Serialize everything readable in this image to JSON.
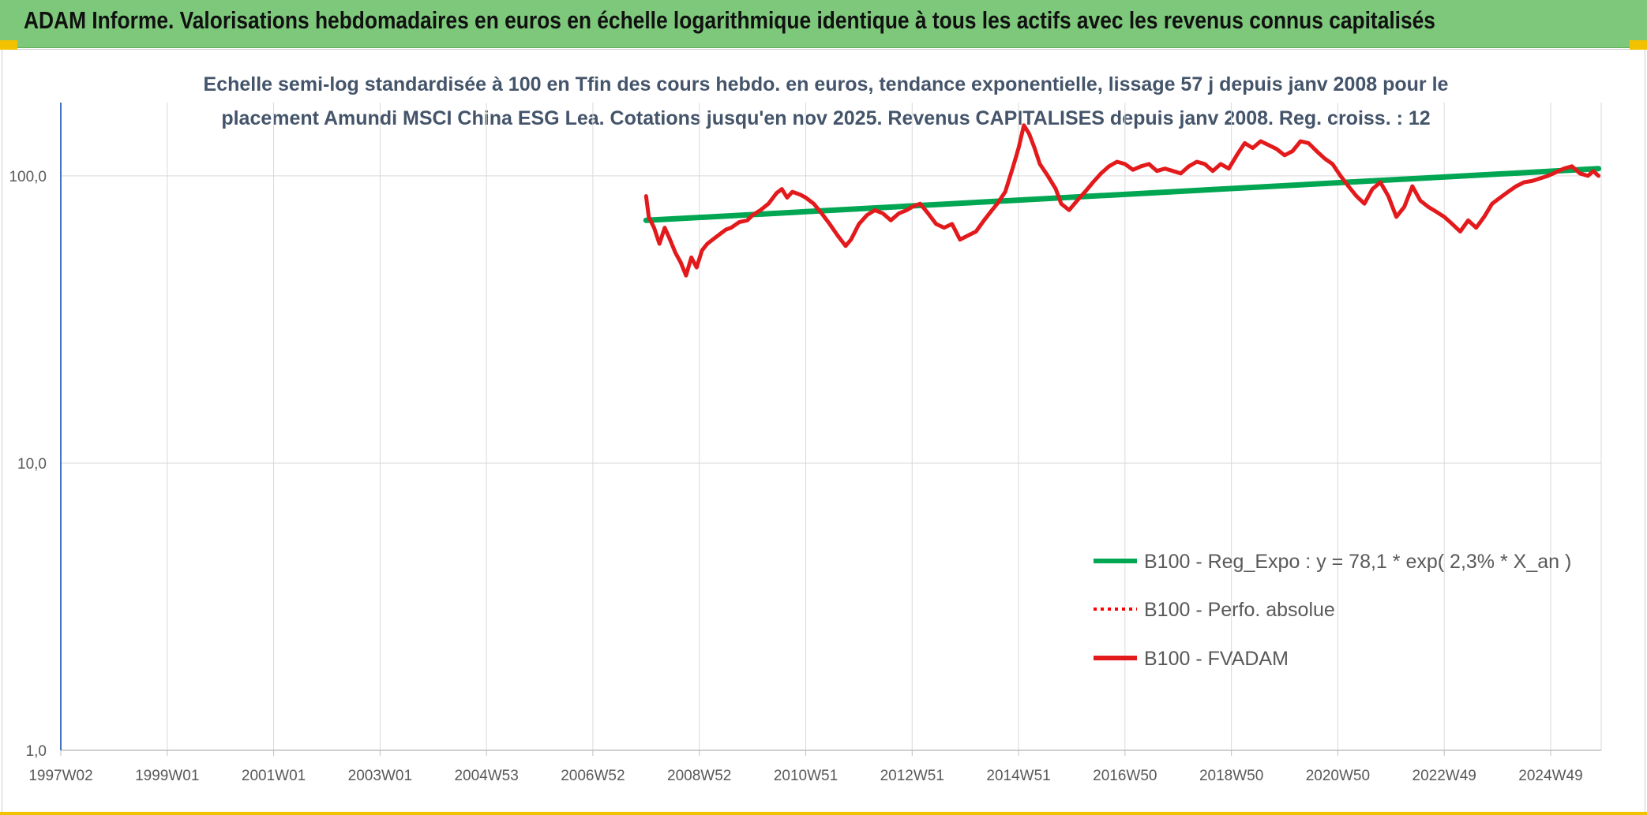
{
  "header": {
    "title": "ADAM Informe. Valorisations hebdomadaires en euros en échelle logarithmique identique à tous les actifs avec les revenus connus capitalisés"
  },
  "colors": {
    "banner": "#7dc87b",
    "accent_yellow": "#f2c200",
    "regression_line": "#00a651",
    "performance_line": "#ff0000",
    "fvadam_line": "#e31a1c",
    "y_axis": "#4472c4"
  },
  "chart_data": {
    "type": "line",
    "subtitle_line1": "Echelle semi-log standardisée à 100 en Tfin des cours hebdo. en euros, tendance exponentielle, lissage 57 j depuis janv 2008 pour le",
    "subtitle_line2": "placement Amundi MSCI China ESG Lea. Cotations jusqu'en nov 2025. Revenus CAPITALISES depuis janv 2008. Reg. croiss. : 12",
    "y_scale": "log",
    "ylim": [
      1,
      180
    ],
    "y_tick_labels": [
      "100,0",
      "10,0",
      "1,0"
    ],
    "y_tick_values": [
      100,
      10,
      1
    ],
    "xlim": [
      1997.0,
      2025.95
    ],
    "x_tick_labels": [
      "1997W02",
      "1999W01",
      "2001W01",
      "2003W01",
      "2004W53",
      "2006W52",
      "2008W52",
      "2010W51",
      "2012W51",
      "2014W51",
      "2016W50",
      "2018W50",
      "2020W50",
      "2022W49",
      "2024W49"
    ],
    "x_tick_values": [
      1997.0,
      1999.0,
      2001.0,
      2003.0,
      2005.0,
      2007.0,
      2009.0,
      2011.0,
      2013.0,
      2015.0,
      2017.0,
      2019.0,
      2021.0,
      2023.0,
      2025.0
    ],
    "grid": true,
    "legend_position": "bottom-right",
    "series": [
      {
        "name": "B100 - Reg_Expo : y = 78,1 * exp( 2,3% *  X_an )",
        "style": "solid",
        "x": [
          2008.0,
          2025.9
        ],
        "y": [
          70,
          106
        ]
      },
      {
        "name": "B100 - Perfo. absolue",
        "style": "dotted",
        "x": [],
        "y": []
      },
      {
        "name": "B100 - FVADAM",
        "style": "solid",
        "x": [
          2008.0,
          2008.05,
          2008.15,
          2008.25,
          2008.35,
          2008.45,
          2008.55,
          2008.65,
          2008.75,
          2008.85,
          2008.95,
          2009.05,
          2009.15,
          2009.25,
          2009.4,
          2009.5,
          2009.6,
          2009.75,
          2009.9,
          2010.0,
          2010.15,
          2010.3,
          2010.45,
          2010.55,
          2010.65,
          2010.75,
          2010.9,
          2011.0,
          2011.15,
          2011.3,
          2011.45,
          2011.6,
          2011.75,
          2011.85,
          2012.0,
          2012.15,
          2012.3,
          2012.45,
          2012.6,
          2012.75,
          2012.9,
          2013.0,
          2013.15,
          2013.3,
          2013.45,
          2013.6,
          2013.75,
          2013.9,
          2014.05,
          2014.2,
          2014.35,
          2014.5,
          2014.6,
          2014.75,
          2014.9,
          2015.0,
          2015.1,
          2015.2,
          2015.3,
          2015.4,
          2015.55,
          2015.7,
          2015.8,
          2015.95,
          2016.1,
          2016.25,
          2016.4,
          2016.55,
          2016.7,
          2016.85,
          2017.0,
          2017.15,
          2017.3,
          2017.45,
          2017.6,
          2017.75,
          2017.9,
          2018.05,
          2018.2,
          2018.35,
          2018.5,
          2018.65,
          2018.8,
          2018.95,
          2019.1,
          2019.25,
          2019.4,
          2019.55,
          2019.7,
          2019.85,
          2020.0,
          2020.15,
          2020.3,
          2020.45,
          2020.6,
          2020.75,
          2020.9,
          2021.05,
          2021.2,
          2021.35,
          2021.5,
          2021.65,
          2021.8,
          2021.95,
          2022.1,
          2022.25,
          2022.4,
          2022.55,
          2022.7,
          2022.85,
          2023.0,
          2023.15,
          2023.3,
          2023.45,
          2023.6,
          2023.75,
          2023.9,
          2024.05,
          2024.2,
          2024.35,
          2024.5,
          2024.65,
          2024.8,
          2024.95,
          2025.1,
          2025.25,
          2025.4,
          2025.55,
          2025.7,
          2025.8,
          2025.9
        ],
        "y": [
          85,
          72,
          66,
          58,
          66,
          60,
          54,
          50,
          45,
          52,
          48,
          55,
          58,
          60,
          63,
          65,
          66,
          69,
          70,
          73,
          76,
          80,
          87,
          90,
          84,
          88,
          86,
          84,
          80,
          74,
          68,
          62,
          57,
          60,
          68,
          73,
          76,
          74,
          70,
          74,
          76,
          78,
          80,
          74,
          68,
          66,
          68,
          60,
          62,
          64,
          70,
          76,
          80,
          88,
          108,
          125,
          150,
          140,
          125,
          110,
          100,
          90,
          80,
          76,
          82,
          88,
          95,
          102,
          108,
          112,
          110,
          105,
          108,
          110,
          104,
          106,
          104,
          102,
          108,
          112,
          110,
          104,
          110,
          106,
          118,
          130,
          125,
          132,
          128,
          124,
          118,
          122,
          132,
          130,
          122,
          115,
          110,
          100,
          92,
          85,
          80,
          90,
          95,
          85,
          72,
          78,
          92,
          82,
          78,
          75,
          72,
          68,
          64,
          70,
          66,
          72,
          80,
          84,
          88,
          92,
          95,
          96,
          98,
          100,
          103,
          106,
          108,
          102,
          100,
          104,
          100
        ]
      }
    ]
  },
  "legend": {
    "items": [
      {
        "label": "B100 - Reg_Expo : y = 78,1 * exp( 2,3% *  X_an )",
        "color": "#00a651",
        "style": "solid"
      },
      {
        "label": "B100 - Perfo. absolue",
        "color": "#ff0000",
        "style": "dotted"
      },
      {
        "label": "B100 - FVADAM",
        "color": "#e31a1c",
        "style": "solid"
      }
    ]
  }
}
